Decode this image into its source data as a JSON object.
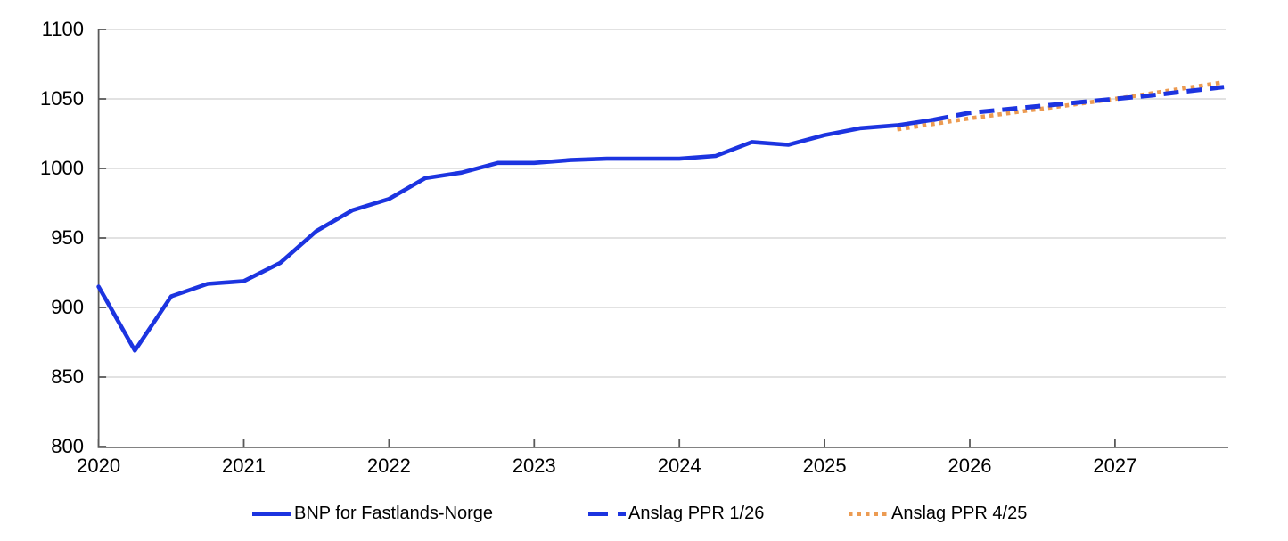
{
  "chart_data": {
    "type": "line",
    "title": "",
    "xlabel": "",
    "ylabel": "",
    "grid": "horizontal",
    "legend_position": "bottom",
    "y_axis": {
      "min": 800,
      "max": 1100,
      "ticks": [
        800,
        850,
        900,
        950,
        1000,
        1050,
        1100
      ]
    },
    "x_axis": {
      "start": 2020,
      "end": 2027.79,
      "ticks": [
        2020,
        2021,
        2022,
        2023,
        2024,
        2025,
        2026,
        2027
      ]
    },
    "series": [
      {
        "name": "BNP for Fastlands-Norge",
        "style": "solid",
        "color": "#1c34e0",
        "start": 2020.0,
        "step": 0.25,
        "values": [
          915,
          869,
          908,
          917,
          919,
          932,
          955,
          970,
          978,
          993,
          997,
          1004,
          1004,
          1006,
          1007,
          1007,
          1007,
          1009,
          1019,
          1017,
          1024,
          1029,
          1031,
          1035
        ]
      },
      {
        "name": "Anslag PPR 1/26",
        "style": "dashed",
        "color": "#1c34e0",
        "start": 2025.75,
        "step": 0.25,
        "values": [
          1035,
          1040,
          1042.5,
          1045,
          1047.5,
          1050,
          1052.5,
          1055.5,
          1058.5
        ]
      },
      {
        "name": "Anslag PPR 4/25",
        "style": "dotted",
        "color": "#ec9b52",
        "start": 2025.5,
        "step": 0.25,
        "values": [
          1028,
          1032,
          1036,
          1039.5,
          1043,
          1046.5,
          1050,
          1054,
          1058,
          1062
        ]
      }
    ]
  },
  "colors": {
    "axis": "#595959",
    "grid": "#d9d9d9",
    "text": "#000000"
  }
}
